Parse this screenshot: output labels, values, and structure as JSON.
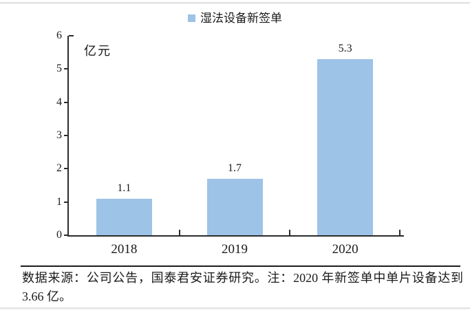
{
  "chart_data": {
    "type": "bar",
    "series_name": "湿法设备新签单",
    "categories": [
      "2018",
      "2019",
      "2020"
    ],
    "values": [
      1.1,
      1.7,
      5.3
    ],
    "data_labels": [
      "1.1",
      "1.7",
      "5.3"
    ],
    "ylabel": "亿元",
    "ylim": [
      0,
      6
    ],
    "ytick_step": 1,
    "bar_color": "#9dc3e6",
    "axis_color": "#2b2b2b",
    "grid": false,
    "legend_position": "top-center",
    "data_labels_shown": true
  },
  "page": {
    "footnote": "数据来源：公司公告，国泰君安证券研究。注：2020 年新签单中单片设备达到 3.66 亿。"
  }
}
